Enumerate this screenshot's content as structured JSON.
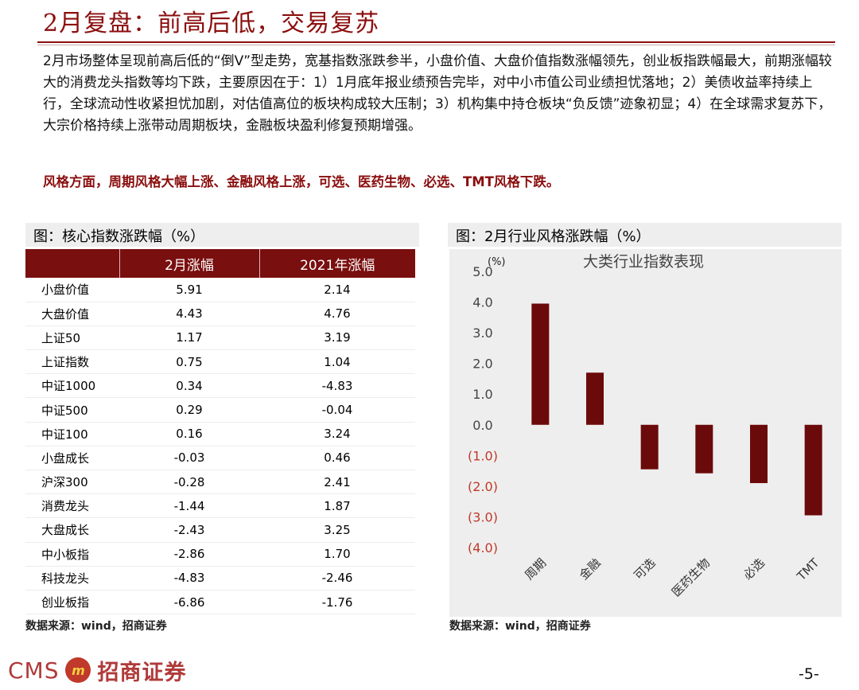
{
  "page": {
    "title": "2月复盘：前高后低，交易复苏",
    "paragraph": "2月市场整体呈现前高后低的“倒V”型走势，宽基指数涨跌参半，小盘价值、大盘价值指数涨幅领先，创业板指跌幅最大，前期涨幅较大的消费龙头指数等均下跌，主要原因在于：1）1月底年报业绩预告完毕，对中小市值公司业绩担忧落地；2）美债收益率持续上行，全球流动性收紧担忧加剧，对估值高位的板块构成较大压制；3）机构集中持仓板块“负反馈”迹象初显；4）在全球需求复苏下，大宗价格持续上涨带动周期板块，金融板块盈利修复预期增强。",
    "style_note": "风格方面，周期风格大幅上涨、金融风格上涨，可选、医药生物、必选、TMT风格下跌。",
    "page_number": "-5-",
    "accent_color": "#8b0e0e",
    "bar_color": "#6b0a0a"
  },
  "logo": {
    "latin": "CMS",
    "badge": "m",
    "chinese": "招商证券"
  },
  "figure1": {
    "title": "图：核心指数涨跌幅（%）",
    "source": "数据来源：wind，招商证券",
    "columns": [
      "",
      "2月涨幅",
      "2021年涨幅"
    ],
    "rows": [
      {
        "name": "小盘价值",
        "feb": "5.91",
        "ytd": "2.14"
      },
      {
        "name": "大盘价值",
        "feb": "4.43",
        "ytd": "4.76"
      },
      {
        "name": "上证50",
        "feb": "1.17",
        "ytd": "3.19"
      },
      {
        "name": "上证指数",
        "feb": "0.75",
        "ytd": "1.04"
      },
      {
        "name": "中证1000",
        "feb": "0.34",
        "ytd": "-4.83"
      },
      {
        "name": "中证500",
        "feb": "0.29",
        "ytd": "-0.04"
      },
      {
        "name": "中证100",
        "feb": "0.16",
        "ytd": "3.24"
      },
      {
        "name": "小盘成长",
        "feb": "-0.03",
        "ytd": "0.46"
      },
      {
        "name": "沪深300",
        "feb": "-0.28",
        "ytd": "2.41"
      },
      {
        "name": "消费龙头",
        "feb": "-1.44",
        "ytd": "1.87"
      },
      {
        "name": "大盘成长",
        "feb": "-2.43",
        "ytd": "3.25"
      },
      {
        "name": "中小板指",
        "feb": "-2.86",
        "ytd": "1.70"
      },
      {
        "name": "科技龙头",
        "feb": "-4.83",
        "ytd": "-2.46"
      },
      {
        "name": "创业板指",
        "feb": "-6.86",
        "ytd": "-1.76"
      }
    ]
  },
  "figure2": {
    "title": "图：2月行业风格涨跌幅（%）",
    "source": "数据来源：wind，招商证券"
  },
  "chart_data": {
    "type": "bar",
    "title": "大类行业指数表现",
    "ylabel": "(%)",
    "xlabel": "",
    "categories": [
      "周期",
      "金融",
      "可选",
      "医药生物",
      "必选",
      "TMT"
    ],
    "values": [
      3.95,
      1.7,
      -1.45,
      -1.58,
      -1.9,
      -2.95
    ],
    "ylim": [
      -4.0,
      5.0
    ],
    "yticks": [
      "5.0",
      "4.0",
      "3.0",
      "2.0",
      "1.0",
      "0.0",
      "(1.0)",
      "(2.0)",
      "(3.0)",
      "(4.0)"
    ],
    "ytick_values": [
      5,
      4,
      3,
      2,
      1,
      0,
      -1,
      -2,
      -3,
      -4
    ],
    "grid": false,
    "legend": "none"
  }
}
